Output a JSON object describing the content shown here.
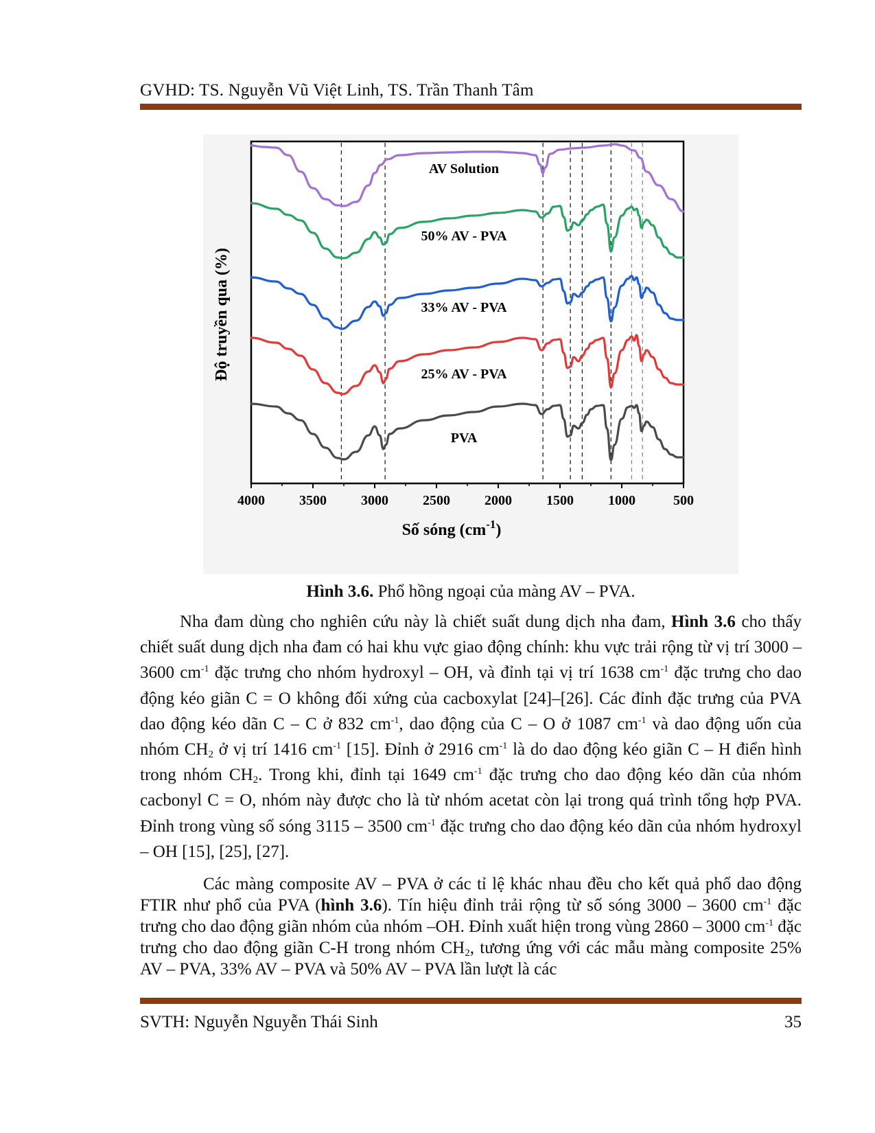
{
  "header": {
    "text": "GVHD: TS. Nguyễn Vũ Việt Linh, TS. Trần Thanh Tâm"
  },
  "footer": {
    "left": "SVTH: Nguyễn Nguyễn Thái Sinh",
    "page": "35"
  },
  "figure": {
    "caption_bold": "Hình 3.6.",
    "caption_rest": " Phổ hồng ngoại của màng AV – PVA."
  },
  "chart_data": {
    "type": "line",
    "xlabel": "Số sóng (cm",
    "xlabel_sup": "-1",
    "xlabel_close": ")",
    "ylabel": "Độ truyền qua (%)",
    "xlim": [
      4000,
      500
    ],
    "xticks": [
      "4000",
      "3500",
      "3000",
      "2500",
      "2000",
      "1500",
      "1000",
      "500"
    ],
    "reference_lines": [
      3270,
      2916,
      1638,
      1416,
      1320,
      1087,
      920,
      832
    ],
    "series": [
      {
        "name": "AV Solution",
        "color": "#a271d6",
        "offset": 78,
        "points": [
          [
            4000,
            2
          ],
          [
            3900,
            4
          ],
          [
            3800,
            5
          ],
          [
            3700,
            16
          ],
          [
            3600,
            40
          ],
          [
            3500,
            64
          ],
          [
            3400,
            80
          ],
          [
            3300,
            89
          ],
          [
            3250,
            90
          ],
          [
            3150,
            84
          ],
          [
            3050,
            60
          ],
          [
            3000,
            42
          ],
          [
            2950,
            30
          ],
          [
            2900,
            22
          ],
          [
            2800,
            16
          ],
          [
            2600,
            13
          ],
          [
            2400,
            12
          ],
          [
            2200,
            11
          ],
          [
            2000,
            11
          ],
          [
            1900,
            12
          ],
          [
            1800,
            13
          ],
          [
            1700,
            16
          ],
          [
            1660,
            30
          ],
          [
            1640,
            42
          ],
          [
            1620,
            34
          ],
          [
            1580,
            14
          ],
          [
            1500,
            8
          ],
          [
            1400,
            6
          ],
          [
            1300,
            5
          ],
          [
            1150,
            2
          ],
          [
            1050,
            0
          ],
          [
            1000,
            2
          ],
          [
            900,
            9
          ],
          [
            850,
            20
          ],
          [
            800,
            40
          ],
          [
            700,
            60
          ],
          [
            600,
            80
          ],
          [
            500,
            98
          ]
        ]
      },
      {
        "name": "50% AV - PVA",
        "color": "#27a464",
        "offset": 0,
        "points": [
          [
            4000,
            0
          ],
          [
            3800,
            8
          ],
          [
            3700,
            17
          ],
          [
            3600,
            25
          ],
          [
            3500,
            43
          ],
          [
            3400,
            66
          ],
          [
            3300,
            79
          ],
          [
            3250,
            80
          ],
          [
            3150,
            72
          ],
          [
            3050,
            52
          ],
          [
            3000,
            42
          ],
          [
            2960,
            50
          ],
          [
            2930,
            60
          ],
          [
            2910,
            58
          ],
          [
            2880,
            45
          ],
          [
            2800,
            36
          ],
          [
            2600,
            27
          ],
          [
            2400,
            22
          ],
          [
            2200,
            18
          ],
          [
            2000,
            14
          ],
          [
            1800,
            10
          ],
          [
            1700,
            12
          ],
          [
            1650,
            21
          ],
          [
            1600,
            15
          ],
          [
            1550,
            5
          ],
          [
            1500,
            4
          ],
          [
            1470,
            20
          ],
          [
            1440,
            40
          ],
          [
            1416,
            38
          ],
          [
            1390,
            28
          ],
          [
            1350,
            32
          ],
          [
            1320,
            25
          ],
          [
            1280,
            16
          ],
          [
            1250,
            10
          ],
          [
            1200,
            5
          ],
          [
            1150,
            2
          ],
          [
            1120,
            30
          ],
          [
            1087,
            70
          ],
          [
            1060,
            50
          ],
          [
            1000,
            18
          ],
          [
            950,
            8
          ],
          [
            920,
            5
          ],
          [
            900,
            10
          ],
          [
            880,
            8
          ],
          [
            860,
            18
          ],
          [
            840,
            36
          ],
          [
            820,
            28
          ],
          [
            800,
            24
          ],
          [
            750,
            32
          ],
          [
            700,
            50
          ],
          [
            650,
            64
          ],
          [
            600,
            74
          ],
          [
            550,
            79
          ],
          [
            500,
            79
          ]
        ]
      },
      {
        "name": "33% AV - PVA",
        "color": "#1f5fd1",
        "offset": 0,
        "points": [
          [
            4000,
            0
          ],
          [
            3800,
            6
          ],
          [
            3700,
            16
          ],
          [
            3600,
            24
          ],
          [
            3500,
            40
          ],
          [
            3400,
            60
          ],
          [
            3300,
            73
          ],
          [
            3270,
            75
          ],
          [
            3150,
            63
          ],
          [
            3050,
            43
          ],
          [
            3000,
            35
          ],
          [
            2960,
            42
          ],
          [
            2930,
            56
          ],
          [
            2910,
            52
          ],
          [
            2880,
            40
          ],
          [
            2800,
            30
          ],
          [
            2600,
            24
          ],
          [
            2400,
            19
          ],
          [
            2200,
            15
          ],
          [
            2000,
            9
          ],
          [
            1800,
            2
          ],
          [
            1700,
            4
          ],
          [
            1650,
            13
          ],
          [
            1600,
            8
          ],
          [
            1550,
            3
          ],
          [
            1500,
            2
          ],
          [
            1470,
            20
          ],
          [
            1440,
            38
          ],
          [
            1416,
            36
          ],
          [
            1390,
            24
          ],
          [
            1350,
            28
          ],
          [
            1320,
            22
          ],
          [
            1280,
            13
          ],
          [
            1250,
            7
          ],
          [
            1200,
            3
          ],
          [
            1150,
            0
          ],
          [
            1120,
            30
          ],
          [
            1087,
            64
          ],
          [
            1060,
            44
          ],
          [
            1000,
            12
          ],
          [
            950,
            2
          ],
          [
            920,
            -2
          ],
          [
            900,
            4
          ],
          [
            880,
            0
          ],
          [
            860,
            10
          ],
          [
            840,
            30
          ],
          [
            820,
            22
          ],
          [
            800,
            15
          ],
          [
            750,
            22
          ],
          [
            700,
            40
          ],
          [
            650,
            52
          ],
          [
            600,
            60
          ],
          [
            550,
            62
          ],
          [
            500,
            62
          ]
        ]
      },
      {
        "name": "25% AV - PVA",
        "color": "#e03a3a",
        "offset": 0,
        "points": [
          [
            4000,
            0
          ],
          [
            3800,
            7
          ],
          [
            3700,
            16
          ],
          [
            3600,
            26
          ],
          [
            3500,
            46
          ],
          [
            3400,
            66
          ],
          [
            3300,
            80
          ],
          [
            3260,
            82
          ],
          [
            3150,
            70
          ],
          [
            3050,
            49
          ],
          [
            3000,
            40
          ],
          [
            2960,
            50
          ],
          [
            2930,
            66
          ],
          [
            2910,
            60
          ],
          [
            2880,
            45
          ],
          [
            2800,
            34
          ],
          [
            2600,
            24
          ],
          [
            2400,
            18
          ],
          [
            2200,
            14
          ],
          [
            2000,
            6
          ],
          [
            1800,
            0
          ],
          [
            1700,
            2
          ],
          [
            1650,
            18
          ],
          [
            1600,
            8
          ],
          [
            1550,
            3
          ],
          [
            1500,
            2
          ],
          [
            1470,
            22
          ],
          [
            1440,
            44
          ],
          [
            1416,
            42
          ],
          [
            1390,
            28
          ],
          [
            1350,
            34
          ],
          [
            1320,
            26
          ],
          [
            1280,
            16
          ],
          [
            1250,
            8
          ],
          [
            1200,
            3
          ],
          [
            1150,
            0
          ],
          [
            1120,
            30
          ],
          [
            1087,
            72
          ],
          [
            1060,
            52
          ],
          [
            1000,
            18
          ],
          [
            950,
            3
          ],
          [
            920,
            -2
          ],
          [
            900,
            4
          ],
          [
            880,
            -4
          ],
          [
            860,
            12
          ],
          [
            840,
            34
          ],
          [
            820,
            24
          ],
          [
            800,
            18
          ],
          [
            750,
            28
          ],
          [
            700,
            46
          ],
          [
            650,
            58
          ],
          [
            600,
            66
          ],
          [
            550,
            68
          ],
          [
            500,
            68
          ]
        ]
      },
      {
        "name": "PVA",
        "color": "#4a4a4a",
        "offset": 0,
        "points": [
          [
            4000,
            0
          ],
          [
            3800,
            4
          ],
          [
            3700,
            14
          ],
          [
            3600,
            24
          ],
          [
            3500,
            44
          ],
          [
            3400,
            64
          ],
          [
            3300,
            79
          ],
          [
            3250,
            81
          ],
          [
            3150,
            70
          ],
          [
            3050,
            46
          ],
          [
            3000,
            33
          ],
          [
            2960,
            46
          ],
          [
            2930,
            66
          ],
          [
            2910,
            60
          ],
          [
            2880,
            44
          ],
          [
            2800,
            36
          ],
          [
            2600,
            24
          ],
          [
            2400,
            17
          ],
          [
            2200,
            12
          ],
          [
            2000,
            4
          ],
          [
            1800,
            0
          ],
          [
            1700,
            2
          ],
          [
            1650,
            15
          ],
          [
            1600,
            8
          ],
          [
            1550,
            3
          ],
          [
            1500,
            2
          ],
          [
            1470,
            22
          ],
          [
            1440,
            48
          ],
          [
            1416,
            46
          ],
          [
            1390,
            32
          ],
          [
            1350,
            36
          ],
          [
            1320,
            28
          ],
          [
            1280,
            16
          ],
          [
            1250,
            8
          ],
          [
            1200,
            3
          ],
          [
            1150,
            2
          ],
          [
            1120,
            36
          ],
          [
            1087,
            82
          ],
          [
            1060,
            60
          ],
          [
            1000,
            22
          ],
          [
            950,
            5
          ],
          [
            920,
            3
          ],
          [
            900,
            6
          ],
          [
            880,
            2
          ],
          [
            860,
            14
          ],
          [
            840,
            40
          ],
          [
            820,
            32
          ],
          [
            800,
            26
          ],
          [
            750,
            34
          ],
          [
            700,
            52
          ],
          [
            650,
            66
          ],
          [
            600,
            74
          ],
          [
            550,
            78
          ],
          [
            500,
            78
          ]
        ]
      }
    ]
  },
  "para1": {
    "s1": "Nha đam dùng cho nghiên cứu này là chiết suất dung dịch nha đam, ",
    "b1": "Hình 3.6",
    "s2": " cho thấy chiết suất dung dịch nha đam có hai khu vực giao động chính: khu vực trải rộng từ vị trí 3000 – 3600 cm",
    "sup": "-1",
    "s3": " đặc trưng cho nhóm hydroxyl – OH, và đỉnh tại vị trí 1638 cm",
    "s4": " đặc trưng cho dao động kéo giãn C = O không đối xứng của cacboxylat [24]–[26]. Các đỉnh đặc trưng của PVA dao động kéo dãn C – C ở 832 cm",
    "s5": ", dao động của C – O ở 1087 cm",
    "s6": " và dao động uốn của nhóm CH",
    "sub2": "2",
    "s7": " ở vị trí 1416 cm",
    "s8": " [15]. Đỉnh ở 2916 cm",
    "s9": " là do dao động kéo giãn C – H điển hình trong nhóm CH",
    "s10": ". Trong khi, đỉnh tại 1649 cm",
    "s11": " đặc trưng cho dao động kéo dãn của nhóm cacbonyl C = O, nhóm này được cho là từ nhóm acetat còn lại trong quá trình tổng hợp PVA. Đỉnh trong vùng số sóng 3115 – 3500 cm",
    "s12": " đặc trưng cho dao động kéo dãn của nhóm hydroxyl – OH [15], [25], [27]."
  },
  "para2": {
    "s1": "Các màng composite AV – PVA ở các tỉ lệ khác nhau đều cho kết quả phổ dao động FTIR như phổ của PVA (",
    "b1": "hình 3.6",
    "s2": "). Tín hiệu đỉnh trải rộng từ số sóng 3000 – 3600 cm",
    "s3": " đặc trưng cho dao động giãn nhóm của nhóm –OH. Đỉnh xuất hiện trong vùng 2860 – 3000 cm",
    "s4": " đặc trưng cho dao động giãn C-H trong nhóm CH",
    "s5": ", tương ứng với các mẫu màng composite 25% AV – PVA, 33% AV – PVA và 50% AV – PVA lần lượt là các"
  }
}
